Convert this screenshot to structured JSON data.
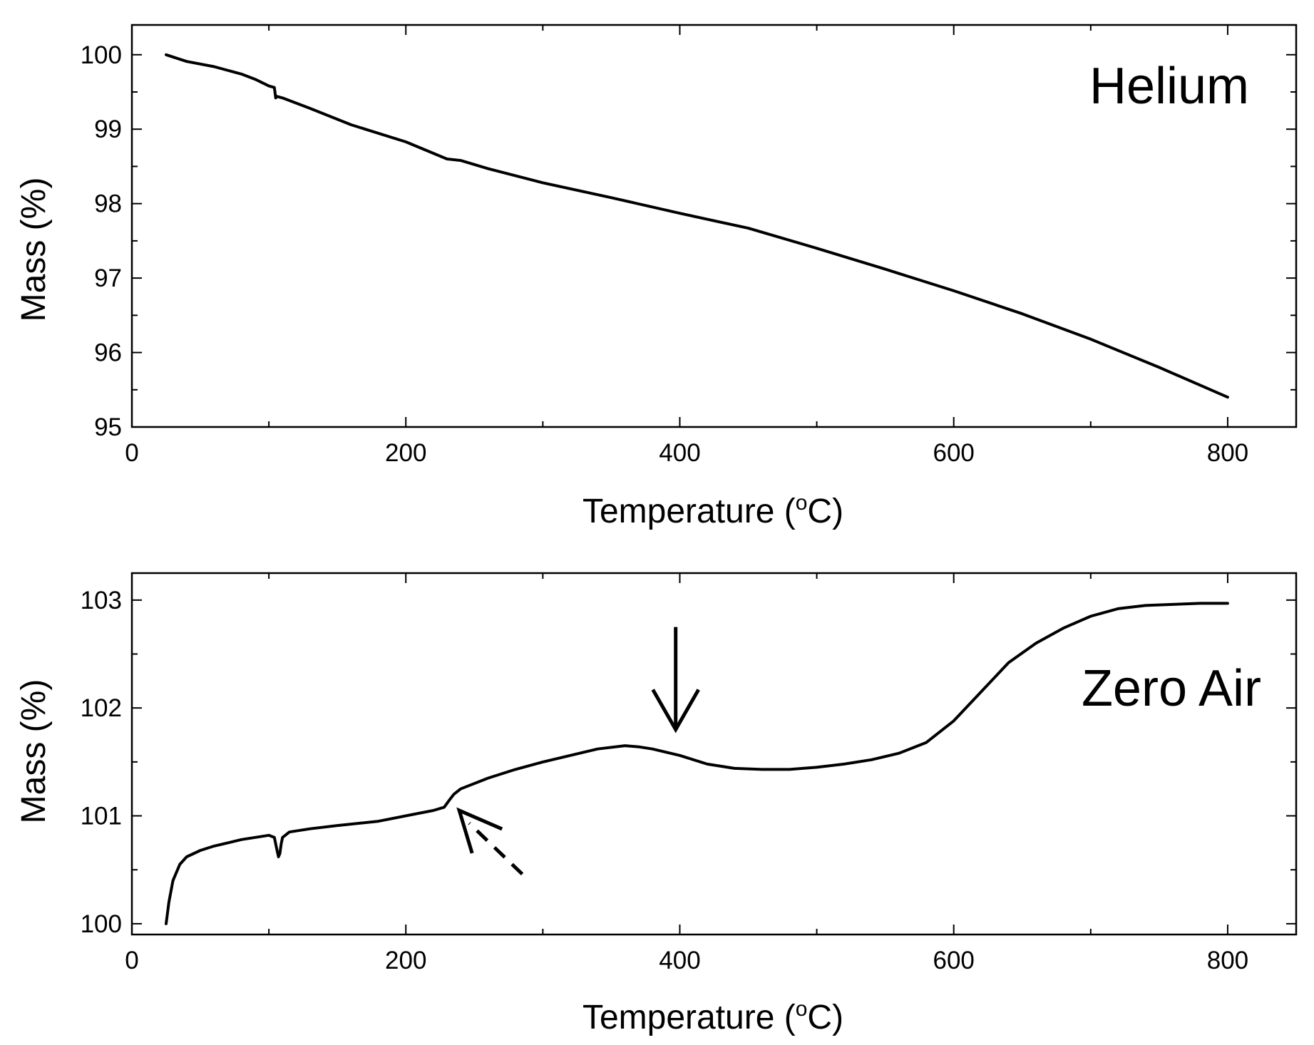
{
  "chart_data": [
    {
      "type": "line",
      "panel_label": "Helium",
      "xlabel": "Temperature (",
      "xlabel_sup": "o",
      "xlabel_tail": "C)",
      "ylabel": "Mass (%)",
      "xlim": [
        0,
        850
      ],
      "ylim": [
        95,
        100.4
      ],
      "x_ticks": [
        0,
        200,
        400,
        600,
        800
      ],
      "x_tick_labels": [
        "0",
        "200",
        "400",
        "600",
        "800"
      ],
      "x_minor_ticks": [
        100,
        300,
        500,
        700
      ],
      "y_ticks": [
        95,
        96,
        97,
        98,
        99,
        100
      ],
      "y_tick_labels": [
        "95",
        "96",
        "97",
        "98",
        "99",
        "100"
      ],
      "y_minor_ticks": [
        95.5,
        96.5,
        97.5,
        98.5,
        99.5
      ],
      "series": [
        {
          "name": "Helium",
          "x": [
            25,
            40,
            60,
            80,
            90,
            100,
            104,
            105,
            106,
            110,
            130,
            160,
            200,
            230,
            240,
            260,
            300,
            350,
            400,
            450,
            500,
            550,
            600,
            650,
            700,
            750,
            800
          ],
          "y": [
            100.0,
            99.91,
            99.84,
            99.74,
            99.67,
            99.58,
            99.56,
            99.42,
            99.44,
            99.42,
            99.28,
            99.06,
            98.83,
            98.6,
            98.58,
            98.47,
            98.28,
            98.08,
            97.87,
            97.67,
            97.4,
            97.12,
            96.83,
            96.52,
            96.18,
            95.8,
            95.4
          ]
        }
      ],
      "annotations": []
    },
    {
      "type": "line",
      "panel_label": "Zero Air",
      "xlabel": "Temperature (",
      "xlabel_sup": "o",
      "xlabel_tail": "C)",
      "ylabel": "Mass (%)",
      "xlim": [
        0,
        850
      ],
      "ylim": [
        99.9,
        103.25
      ],
      "x_ticks": [
        0,
        200,
        400,
        600,
        800
      ],
      "x_tick_labels": [
        "0",
        "200",
        "400",
        "600",
        "800"
      ],
      "x_minor_ticks": [
        100,
        300,
        500,
        700
      ],
      "y_ticks": [
        100,
        101,
        102,
        103
      ],
      "y_tick_labels": [
        "100",
        "101",
        "102",
        "103"
      ],
      "y_minor_ticks": [
        100.5,
        101.5,
        102.5
      ],
      "series": [
        {
          "name": "Zero Air",
          "x": [
            25,
            27,
            30,
            35,
            40,
            50,
            60,
            70,
            80,
            90,
            100,
            104,
            106,
            107,
            108,
            109,
            110,
            115,
            130,
            150,
            180,
            200,
            220,
            228,
            232,
            235,
            240,
            260,
            280,
            300,
            320,
            340,
            360,
            370,
            380,
            400,
            420,
            440,
            460,
            480,
            500,
            520,
            540,
            560,
            580,
            600,
            620,
            640,
            660,
            680,
            700,
            720,
            740,
            760,
            780,
            800
          ],
          "y": [
            100.0,
            100.2,
            100.4,
            100.55,
            100.62,
            100.68,
            100.72,
            100.75,
            100.78,
            100.8,
            100.82,
            100.8,
            100.68,
            100.62,
            100.65,
            100.74,
            100.8,
            100.85,
            100.88,
            100.91,
            100.95,
            101.0,
            101.05,
            101.08,
            101.15,
            101.2,
            101.25,
            101.35,
            101.43,
            101.5,
            101.56,
            101.62,
            101.65,
            101.64,
            101.62,
            101.56,
            101.48,
            101.44,
            101.43,
            101.43,
            101.45,
            101.48,
            101.52,
            101.58,
            101.68,
            101.88,
            102.15,
            102.42,
            102.6,
            102.74,
            102.85,
            102.92,
            102.95,
            102.96,
            102.97,
            102.97
          ]
        }
      ],
      "annotations": [
        {
          "kind": "arrow",
          "style": "solid",
          "direction": "down",
          "x": 397,
          "y_from": 102.75,
          "y_to": 101.8
        },
        {
          "kind": "arrow",
          "style": "dashed",
          "direction": "up-left",
          "x_from": 285,
          "y_from": 100.46,
          "x_to": 239,
          "y_to": 101.05
        }
      ]
    }
  ]
}
